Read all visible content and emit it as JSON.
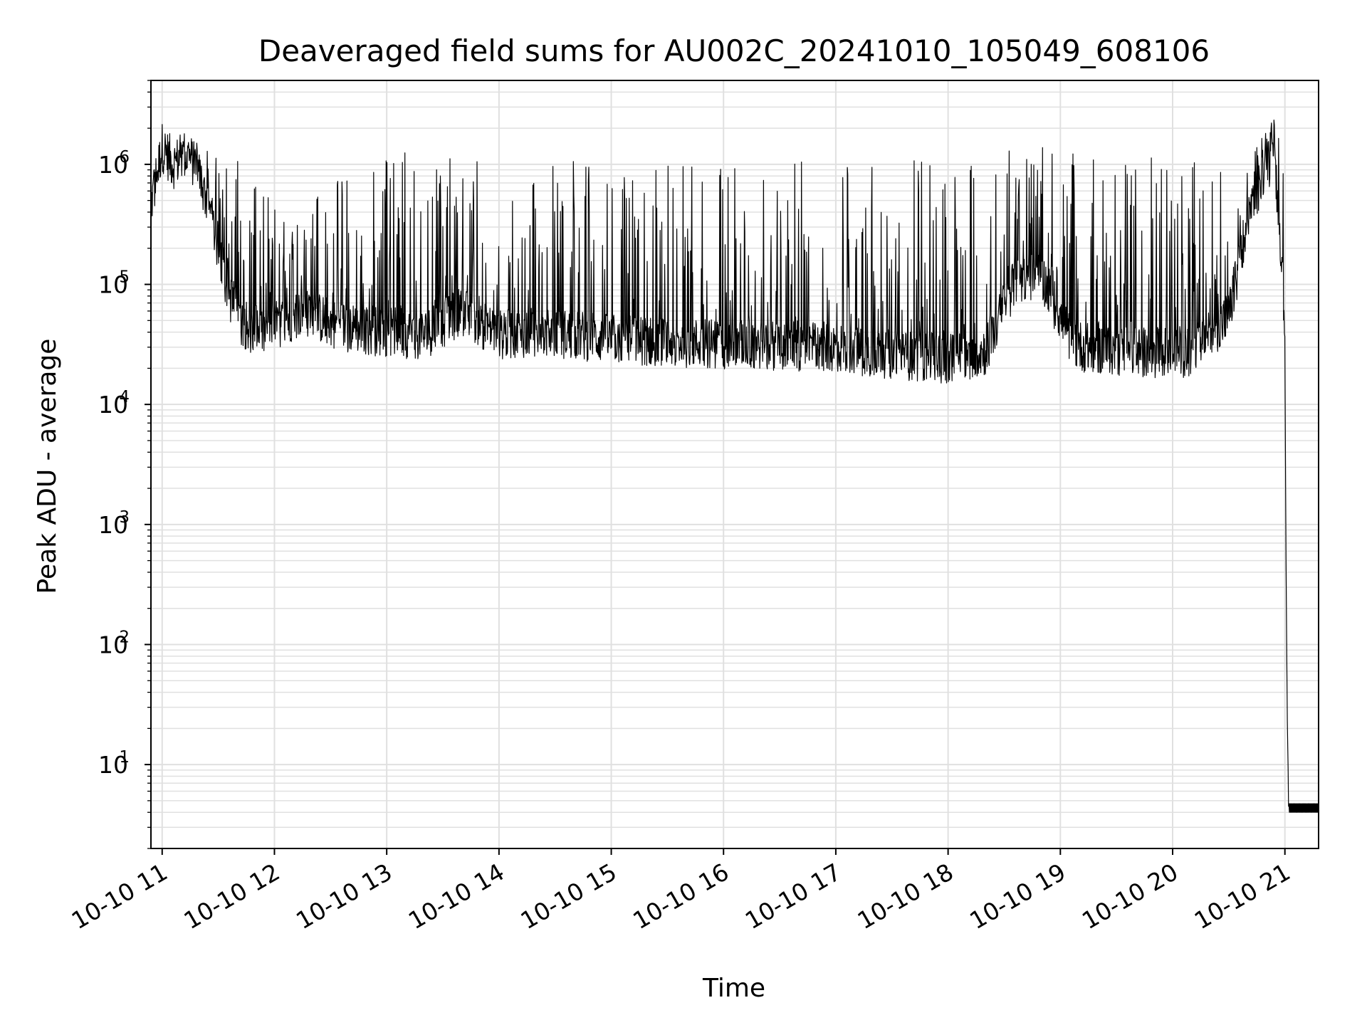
{
  "chart_data": {
    "type": "line",
    "title": "Deaveraged field sums for AU002C_20241010_105049_608106",
    "xlabel": "Time",
    "ylabel": "Peak ADU - average",
    "y_scale": "log",
    "ylim": [
      2,
      5000000
    ],
    "xlim": [
      "2024-10-10T10:54",
      "2024-10-10T21:18"
    ],
    "grid": true,
    "line_color": "#000000",
    "grid_color": "#e0e0e0",
    "x_ticks": [
      {
        "value": "2024-10-10T11:00",
        "label": "10-10 11"
      },
      {
        "value": "2024-10-10T12:00",
        "label": "10-10 12"
      },
      {
        "value": "2024-10-10T13:00",
        "label": "10-10 13"
      },
      {
        "value": "2024-10-10T14:00",
        "label": "10-10 14"
      },
      {
        "value": "2024-10-10T15:00",
        "label": "10-10 15"
      },
      {
        "value": "2024-10-10T16:00",
        "label": "10-10 16"
      },
      {
        "value": "2024-10-10T17:00",
        "label": "10-10 17"
      },
      {
        "value": "2024-10-10T18:00",
        "label": "10-10 18"
      },
      {
        "value": "2024-10-10T19:00",
        "label": "10-10 19"
      },
      {
        "value": "2024-10-10T20:00",
        "label": "10-10 20"
      },
      {
        "value": "2024-10-10T21:00",
        "label": "10-10 21"
      }
    ],
    "y_ticks": [
      {
        "value": 10,
        "base": "10",
        "exp": "1"
      },
      {
        "value": 100,
        "base": "10",
        "exp": "2"
      },
      {
        "value": 1000,
        "base": "10",
        "exp": "3"
      },
      {
        "value": 10000,
        "base": "10",
        "exp": "4"
      },
      {
        "value": 100000,
        "base": "10",
        "exp": "5"
      },
      {
        "value": 1000000,
        "base": "10",
        "exp": "6"
      }
    ],
    "series": [
      {
        "x": [
          "2024-10-10T10:54",
          "2024-10-10T11:00",
          "2024-10-10T11:06",
          "2024-10-10T11:12",
          "2024-10-10T11:18",
          "2024-10-10T11:24",
          "2024-10-10T11:30",
          "2024-10-10T11:36",
          "2024-10-10T11:42",
          "2024-10-10T11:48",
          "2024-10-10T11:54",
          "2024-10-10T12:00",
          "2024-10-10T12:15",
          "2024-10-10T12:30",
          "2024-10-10T12:45",
          "2024-10-10T13:00",
          "2024-10-10T13:20",
          "2024-10-10T13:40",
          "2024-10-10T14:00",
          "2024-10-10T14:20",
          "2024-10-10T14:40",
          "2024-10-10T15:00",
          "2024-10-10T15:30",
          "2024-10-10T16:00",
          "2024-10-10T16:30",
          "2024-10-10T17:00",
          "2024-10-10T17:30",
          "2024-10-10T18:00",
          "2024-10-10T18:20",
          "2024-10-10T18:36",
          "2024-10-10T18:50",
          "2024-10-10T19:05",
          "2024-10-10T19:12",
          "2024-10-10T19:30",
          "2024-10-10T19:50",
          "2024-10-10T20:10",
          "2024-10-10T20:30",
          "2024-10-10T20:40",
          "2024-10-10T20:50",
          "2024-10-10T20:55",
          "2024-10-10T20:58",
          "2024-10-10T21:00",
          "2024-10-10T21:01",
          "2024-10-10T21:02",
          "2024-10-10T21:18"
        ],
        "baseline": [
          450000,
          1400000,
          1000000,
          1200000,
          1000000,
          500000,
          200000,
          80000,
          50000,
          42000,
          40000,
          45000,
          60000,
          48000,
          42000,
          40000,
          38000,
          60000,
          38000,
          40000,
          38000,
          35000,
          33000,
          32000,
          31000,
          30000,
          26000,
          24000,
          28000,
          110000,
          120000,
          35000,
          30000,
          28000,
          27000,
          27000,
          55000,
          300000,
          1100000,
          900000,
          200000,
          40000,
          50,
          4,
          4
        ],
        "peak": [
          800000,
          1800000,
          1600000,
          1700000,
          1600000,
          1300000,
          1100000,
          1200000,
          1200000,
          1100000,
          600000,
          500000,
          600000,
          800000,
          1000000,
          1300000,
          1200000,
          1100000,
          1100000,
          1100000,
          1100000,
          1000000,
          1000000,
          1100000,
          1100000,
          1100000,
          1200000,
          1200000,
          1300000,
          1300000,
          1400000,
          1200000,
          1300000,
          1200000,
          1200000,
          1100000,
          1100000,
          1200000,
          2000000,
          2600000,
          1800000,
          500000,
          60,
          5,
          5
        ]
      }
    ]
  }
}
